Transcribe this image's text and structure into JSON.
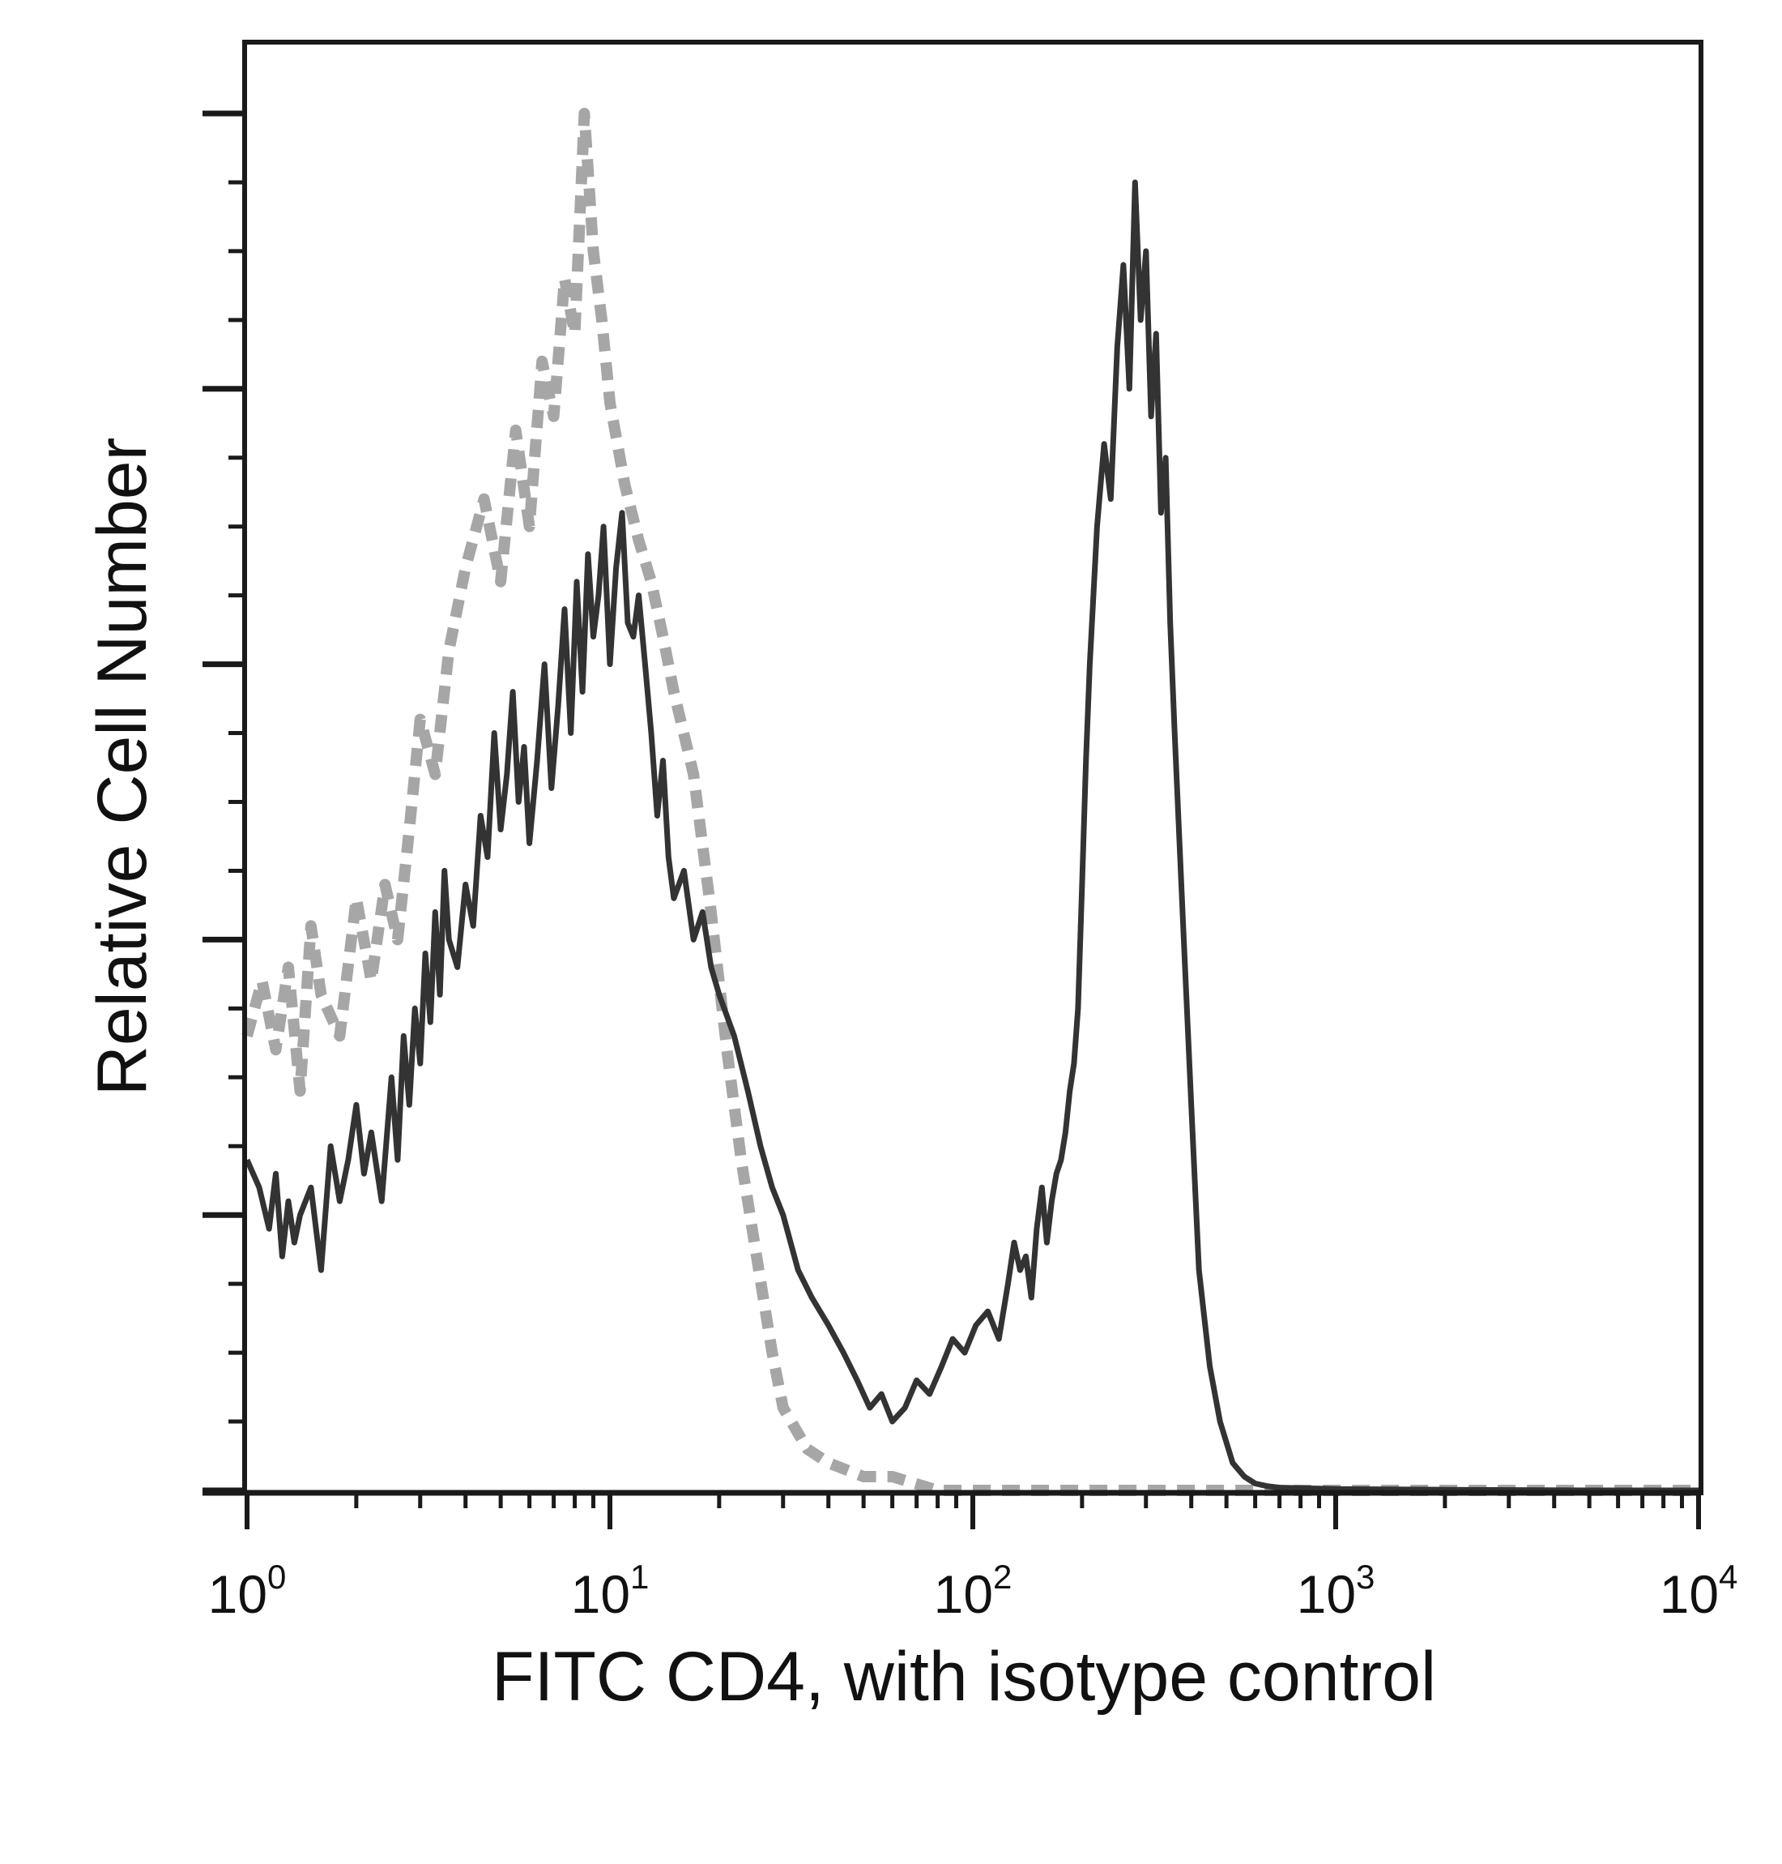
{
  "chart_data": {
    "type": "line",
    "title": "",
    "xlabel": "FITC CD4, with isotype control",
    "ylabel": "Relative Cell Number",
    "x_scale": "log",
    "xlim": [
      1,
      10000
    ],
    "ylim": [
      0,
      100
    ],
    "grid": false,
    "legend": "none",
    "x_ticks": [
      {
        "base": "10",
        "exp": "0",
        "value": 1
      },
      {
        "base": "10",
        "exp": "1",
        "value": 10
      },
      {
        "base": "10",
        "exp": "2",
        "value": 100
      },
      {
        "base": "10",
        "exp": "3",
        "value": 1000
      },
      {
        "base": "10",
        "exp": "4",
        "value": 10000
      }
    ],
    "y_ticks_labeled": false,
    "series": [
      {
        "style": "dashed",
        "color": "#a6a6a6",
        "x": [
          1.0,
          1.1,
          1.2,
          1.3,
          1.4,
          1.5,
          1.6,
          1.8,
          2.0,
          2.2,
          2.4,
          2.6,
          2.8,
          3.0,
          3.3,
          3.6,
          4.0,
          4.5,
          5.0,
          5.5,
          6.0,
          6.5,
          7.0,
          7.5,
          8.0,
          8.5,
          9.0,
          9.5,
          10.0,
          11.0,
          12.0,
          13.0,
          14.0,
          15.0,
          17.0,
          19.0,
          21.0,
          23.0,
          25.0,
          28.0,
          30.0,
          35.0,
          40.0,
          50.0,
          60.0,
          80.0,
          100.0,
          150.0,
          200.0,
          300.0,
          500.0,
          700.0,
          1000.0,
          2000.0,
          5000.0,
          10000.0
        ],
        "y": [
          33,
          37,
          32,
          38,
          29,
          41,
          36,
          33,
          43,
          37,
          44,
          40,
          48,
          56,
          52,
          61,
          67,
          72,
          66,
          77,
          70,
          82,
          78,
          88,
          84,
          100,
          90,
          85,
          79,
          73,
          69,
          66,
          62,
          58,
          52,
          42,
          32,
          24,
          18,
          10,
          6,
          3,
          2,
          1,
          1,
          0,
          0,
          0,
          0,
          0,
          0,
          0,
          0,
          0,
          0,
          0
        ]
      },
      {
        "style": "solid",
        "color": "#333333",
        "x": [
          1.0,
          1.08,
          1.15,
          1.2,
          1.25,
          1.3,
          1.35,
          1.4,
          1.5,
          1.6,
          1.7,
          1.8,
          1.9,
          2.0,
          2.1,
          2.2,
          2.35,
          2.5,
          2.6,
          2.7,
          2.8,
          2.9,
          3.0,
          3.1,
          3.2,
          3.3,
          3.4,
          3.5,
          3.6,
          3.8,
          4.0,
          4.2,
          4.4,
          4.6,
          4.8,
          5.0,
          5.2,
          5.4,
          5.6,
          5.8,
          6.0,
          6.3,
          6.6,
          6.9,
          7.2,
          7.5,
          7.8,
          8.1,
          8.4,
          8.7,
          9.0,
          9.3,
          9.6,
          10.0,
          10.4,
          10.8,
          11.2,
          11.6,
          12.0,
          12.5,
          13.0,
          13.5,
          14.0,
          14.5,
          15.0,
          16.0,
          17.0,
          18.0,
          19.0,
          20.0,
          22.0,
          24.0,
          26.0,
          28.0,
          30.0,
          33.0,
          36.0,
          40.0,
          44.0,
          48.0,
          52.0,
          56.0,
          60.0,
          65.0,
          70.0,
          76.0,
          82.0,
          88.0,
          95.0,
          102.0,
          110.0,
          118.0,
          125.0,
          130.0,
          135.0,
          140.0,
          145.0,
          150.0,
          155.0,
          160.0,
          165.0,
          170.0,
          175.0,
          180.0,
          185.0,
          190.0,
          195.0,
          200.0,
          205.0,
          210.0,
          220.0,
          230.0,
          240.0,
          250.0,
          260.0,
          270.0,
          280.0,
          290.0,
          300.0,
          310.0,
          320.0,
          330.0,
          340.0,
          350.0,
          360.0,
          380.0,
          400.0,
          420.0,
          450.0,
          480.0,
          520.0,
          560.0,
          600.0,
          650.0,
          700.0,
          1000.0,
          2000.0,
          5000.0,
          10000.0
        ],
        "y": [
          24,
          22,
          19,
          23,
          17,
          21,
          18,
          20,
          22,
          16,
          25,
          21,
          24,
          28,
          23,
          26,
          21,
          30,
          24,
          33,
          28,
          35,
          31,
          39,
          34,
          42,
          36,
          45,
          40,
          38,
          44,
          41,
          49,
          46,
          55,
          48,
          52,
          58,
          50,
          54,
          47,
          53,
          60,
          51,
          57,
          64,
          55,
          66,
          58,
          68,
          62,
          65,
          70,
          60,
          67,
          71,
          63,
          62,
          65,
          60,
          55,
          49,
          53,
          46,
          43,
          45,
          40,
          42,
          38,
          36,
          33,
          29,
          25,
          22,
          20,
          16,
          14,
          12,
          10,
          8,
          6,
          7,
          5,
          6,
          8,
          7,
          9,
          11,
          10,
          12,
          13,
          11,
          15,
          18,
          16,
          17,
          14,
          19,
          22,
          18,
          21,
          23,
          24,
          26,
          29,
          31,
          35,
          44,
          53,
          60,
          70,
          76,
          72,
          83,
          89,
          80,
          95,
          85,
          90,
          78,
          84,
          71,
          75,
          63,
          55,
          41,
          28,
          16,
          9,
          5,
          2,
          1,
          0.5,
          0.3,
          0.2,
          0.1,
          0.05,
          0,
          0
        ]
      }
    ]
  }
}
